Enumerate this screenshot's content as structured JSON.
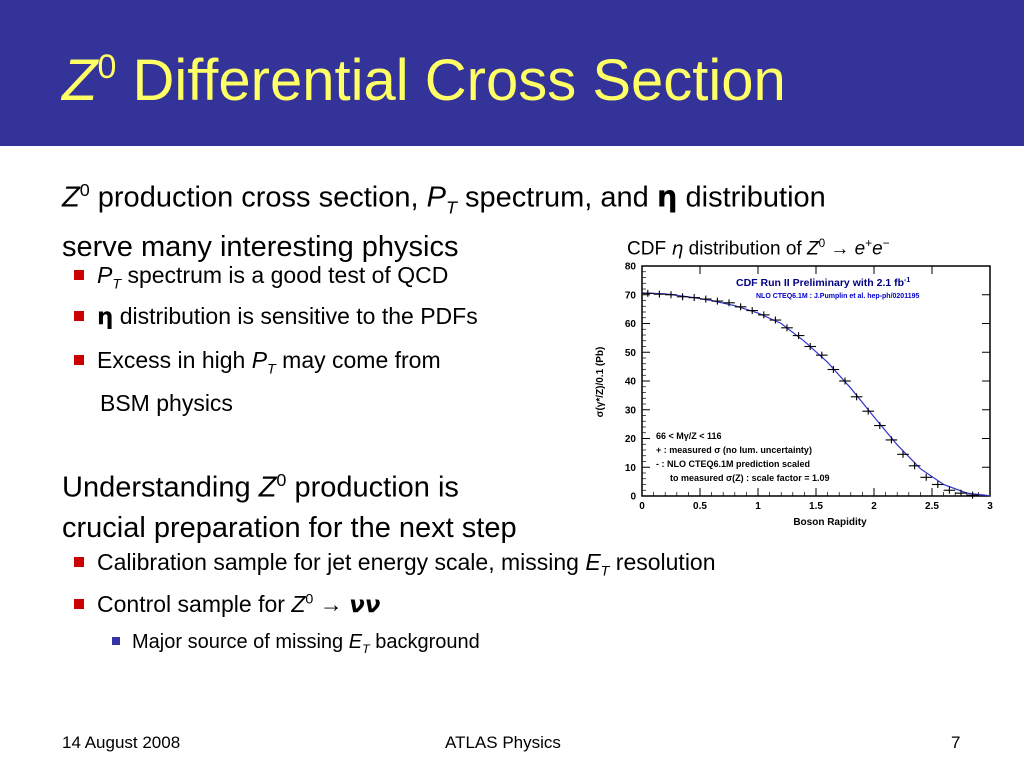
{
  "slide": {
    "title_symbol": "Z",
    "title_sup": "0",
    "title_text": " Differential Cross Section",
    "intro_line1": {
      "z": "Z",
      "z_sup": "0",
      "a": " production cross section, ",
      "p": "P",
      "p_sub": "T",
      "b": " spectrum, and ",
      "eta": "η",
      "c": " distribution"
    },
    "intro_line2": "serve many interesting physics",
    "bullets": [
      {
        "p": "P",
        "p_sub": "T",
        "text": " spectrum is a good test of QCD"
      },
      {
        "eta": "η",
        "text": " distribution is sensitive to the PDFs"
      },
      {
        "a": "Excess in high ",
        "p": "P",
        "p_sub": "T",
        "b": " may come from",
        "line2": "BSM physics"
      }
    ],
    "under_line1": {
      "a": "Understanding ",
      "z": "Z",
      "z_sup": "0",
      "b": " production is"
    },
    "under_line2": "crucial preparation for the next step",
    "bullets2": [
      {
        "a": "Calibration sample for jet energy scale, missing ",
        "e": "E",
        "e_sub": "T",
        "b": " resolution"
      },
      {
        "a": "Control sample for ",
        "z": "Z",
        "z_sup": "0",
        "arrow": " → ",
        "nu": "νν"
      }
    ],
    "subbullet": {
      "a": "Major source of missing ",
      "e": "E",
      "e_sub": "T",
      "b": " background"
    },
    "caption": {
      "a": "CDF ",
      "eta": "η",
      "b": " distribution of ",
      "z": "Z",
      "z_sup": "0",
      "arrow": " → ",
      "e1": "e",
      "e1_sup": "+",
      "e2": "e",
      "e2_sup": "−"
    },
    "footer": {
      "date": "14 August 2008",
      "center": "ATLAS Physics",
      "page": "7"
    }
  },
  "chart_data": {
    "type": "scatter",
    "title": "CDF Run II Preliminary with 2.1 fb",
    "title_sup": "-1",
    "subtitle": "NLO CTEQ6.1M : J.Pumplin et al. hep-ph/0201195",
    "xlabel": "Boson Rapidity",
    "ylabel": "σ(γ*/Z)/0.1 (Pb)",
    "xlim": [
      0,
      3
    ],
    "ylim": [
      0,
      80
    ],
    "xticks": [
      "0",
      "0.5",
      "1",
      "1.5",
      "2",
      "2.5",
      "3"
    ],
    "yticks": [
      "0",
      "10",
      "20",
      "30",
      "40",
      "50",
      "60",
      "70",
      "80"
    ],
    "legend": [
      "66 < Mγ/Z < 116",
      "+ : measured σ (no lum. uncertainty)",
      "- : NLO CTEQ6.1M prediction scaled",
      "to measured σ(Z) : scale factor = 1.09"
    ],
    "legend_position": "bottom-left",
    "series": [
      {
        "name": "measured σ (no lum. uncertainty)",
        "marker": "cross",
        "x": [
          0.05,
          0.15,
          0.25,
          0.35,
          0.45,
          0.55,
          0.65,
          0.75,
          0.85,
          0.95,
          1.05,
          1.15,
          1.25,
          1.35,
          1.45,
          1.55,
          1.65,
          1.75,
          1.85,
          1.95,
          2.05,
          2.15,
          2.25,
          2.35,
          2.45,
          2.55,
          2.65,
          2.75,
          2.85
        ],
        "y": [
          70.5,
          70.2,
          70.0,
          69.3,
          69.0,
          68.5,
          67.8,
          67.2,
          65.8,
          64.5,
          63.0,
          61.2,
          58.5,
          55.8,
          52.0,
          49.0,
          44.0,
          40.0,
          34.5,
          29.5,
          24.5,
          19.5,
          14.5,
          10.5,
          6.5,
          4.0,
          2.0,
          1.0,
          0.3
        ]
      },
      {
        "name": "NLO CTEQ6.1M prediction scaled",
        "marker": "line",
        "x": [
          0.0,
          0.2,
          0.4,
          0.6,
          0.8,
          1.0,
          1.2,
          1.4,
          1.6,
          1.8,
          2.0,
          2.2,
          2.4,
          2.6,
          2.8,
          3.0
        ],
        "y": [
          70.6,
          70.3,
          69.3,
          68.0,
          66.2,
          63.6,
          60.0,
          53.8,
          46.5,
          37.5,
          27.5,
          17.8,
          9.5,
          4.0,
          1.0,
          0.1
        ]
      }
    ],
    "colors": {
      "points": "#000000",
      "curve": "#3333cc",
      "title": "#000080",
      "subtitle": "#0000cc"
    }
  }
}
